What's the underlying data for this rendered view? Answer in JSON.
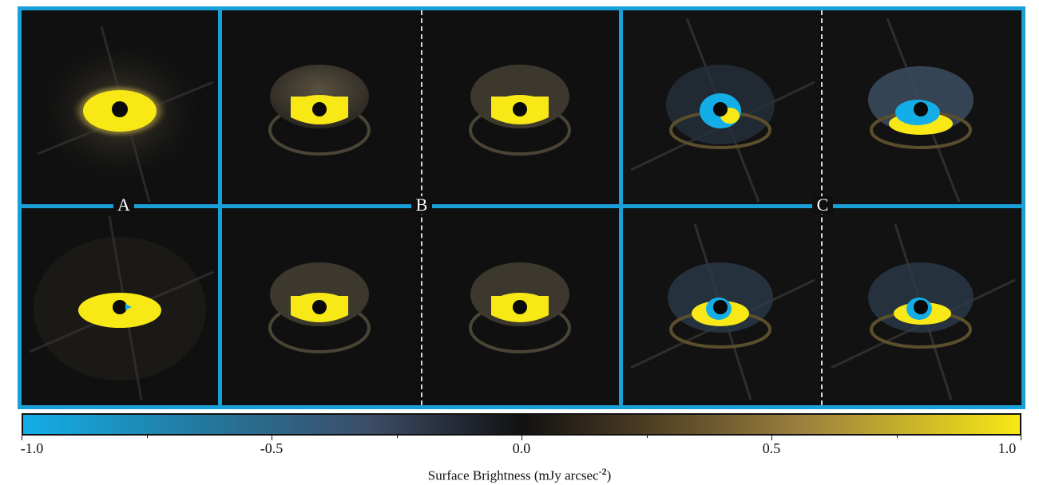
{
  "groups": [
    {
      "label": "A"
    },
    {
      "label": "B"
    },
    {
      "label": "C"
    }
  ],
  "colorbar": {
    "min": -1.0,
    "max": 1.0,
    "tick_labels": [
      "-1.0",
      "-0.5",
      "0.0",
      "0.5",
      "1.0"
    ],
    "label": "Surface Brightness (mJy arcsec",
    "label_exponent": "-2",
    "label_close": ")",
    "colors": {
      "negative": "#13aee8",
      "zero": "#111111",
      "positive": "#f7e816"
    }
  },
  "panels": [
    {
      "row": 1,
      "col": 1,
      "type": "observed"
    },
    {
      "row": 1,
      "col": 2,
      "type": "model"
    },
    {
      "row": 1,
      "col": 3,
      "type": "model"
    },
    {
      "row": 1,
      "col": 4,
      "type": "residual"
    },
    {
      "row": 1,
      "col": 5,
      "type": "residual"
    },
    {
      "row": 2,
      "col": 1,
      "type": "observed"
    },
    {
      "row": 2,
      "col": 2,
      "type": "model"
    },
    {
      "row": 2,
      "col": 3,
      "type": "model"
    },
    {
      "row": 2,
      "col": 4,
      "type": "residual"
    },
    {
      "row": 2,
      "col": 5,
      "type": "residual"
    }
  ],
  "accent_color": "#1aa0d8"
}
